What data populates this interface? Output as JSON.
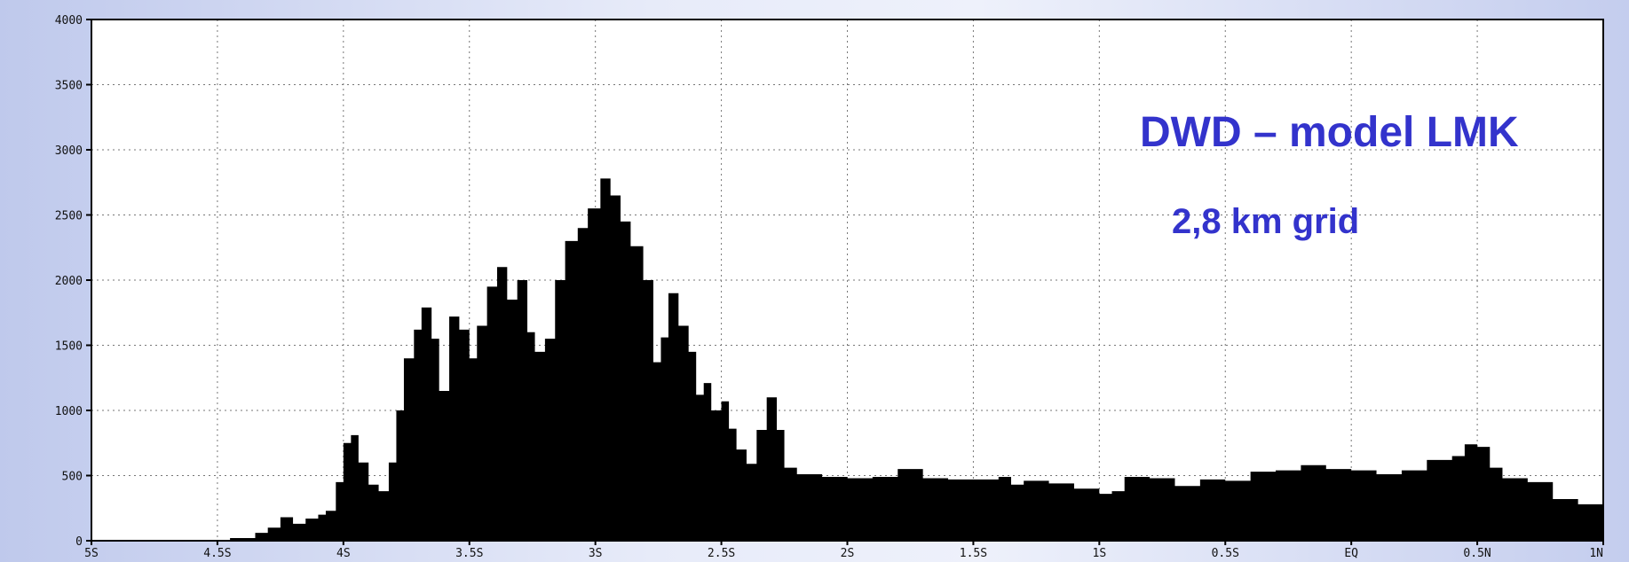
{
  "chart_data": {
    "type": "area",
    "annotations": [
      "DWD – model LMK",
      "2,8 km grid"
    ],
    "xlabel": "",
    "ylabel": "",
    "xlim": [
      -5,
      1
    ],
    "ylim": [
      0,
      4000
    ],
    "grid": true,
    "x_ticks": [
      {
        "value": -5,
        "label": "5S"
      },
      {
        "value": -4.5,
        "label": "4.5S"
      },
      {
        "value": -4,
        "label": "4S"
      },
      {
        "value": -3.5,
        "label": "3.5S"
      },
      {
        "value": -3,
        "label": "3S"
      },
      {
        "value": -2.5,
        "label": "2.5S"
      },
      {
        "value": -2,
        "label": "2S"
      },
      {
        "value": -1.5,
        "label": "1.5S"
      },
      {
        "value": -1,
        "label": "1S"
      },
      {
        "value": -0.5,
        "label": "0.5S"
      },
      {
        "value": 0,
        "label": "EQ"
      },
      {
        "value": 0.5,
        "label": "0.5N"
      },
      {
        "value": 1,
        "label": "1N"
      }
    ],
    "y_ticks": [
      {
        "value": 0,
        "label": "0"
      },
      {
        "value": 500,
        "label": "500"
      },
      {
        "value": 1000,
        "label": "1000"
      },
      {
        "value": 1500,
        "label": "1500"
      },
      {
        "value": 2000,
        "label": "2000"
      },
      {
        "value": 2500,
        "label": "2500"
      },
      {
        "value": 3000,
        "label": "3000"
      },
      {
        "value": 3500,
        "label": "3500"
      },
      {
        "value": 4000,
        "label": "4000"
      }
    ],
    "series": [
      {
        "fill": "#000000",
        "points": [
          [
            -5.0,
            0
          ],
          [
            -4.7,
            0
          ],
          [
            -4.55,
            5
          ],
          [
            -4.45,
            20
          ],
          [
            -4.35,
            60
          ],
          [
            -4.3,
            100
          ],
          [
            -4.25,
            180
          ],
          [
            -4.2,
            130
          ],
          [
            -4.15,
            170
          ],
          [
            -4.1,
            200
          ],
          [
            -4.07,
            230
          ],
          [
            -4.03,
            450
          ],
          [
            -4.0,
            750
          ],
          [
            -3.97,
            810
          ],
          [
            -3.94,
            600
          ],
          [
            -3.9,
            430
          ],
          [
            -3.86,
            380
          ],
          [
            -3.82,
            600
          ],
          [
            -3.79,
            1000
          ],
          [
            -3.76,
            1400
          ],
          [
            -3.72,
            1620
          ],
          [
            -3.69,
            1790
          ],
          [
            -3.65,
            1550
          ],
          [
            -3.62,
            1150
          ],
          [
            -3.58,
            1720
          ],
          [
            -3.54,
            1620
          ],
          [
            -3.5,
            1400
          ],
          [
            -3.47,
            1650
          ],
          [
            -3.43,
            1950
          ],
          [
            -3.39,
            2100
          ],
          [
            -3.35,
            1850
          ],
          [
            -3.31,
            2000
          ],
          [
            -3.27,
            1600
          ],
          [
            -3.24,
            1450
          ],
          [
            -3.2,
            1550
          ],
          [
            -3.16,
            2000
          ],
          [
            -3.12,
            2300
          ],
          [
            -3.07,
            2400
          ],
          [
            -3.03,
            2550
          ],
          [
            -2.98,
            2780
          ],
          [
            -2.94,
            2650
          ],
          [
            -2.9,
            2450
          ],
          [
            -2.86,
            2260
          ],
          [
            -2.81,
            2000
          ],
          [
            -2.77,
            1370
          ],
          [
            -2.74,
            1560
          ],
          [
            -2.71,
            1900
          ],
          [
            -2.67,
            1650
          ],
          [
            -2.63,
            1450
          ],
          [
            -2.6,
            1120
          ],
          [
            -2.57,
            1210
          ],
          [
            -2.54,
            1000
          ],
          [
            -2.5,
            1070
          ],
          [
            -2.47,
            860
          ],
          [
            -2.44,
            700
          ],
          [
            -2.4,
            590
          ],
          [
            -2.36,
            850
          ],
          [
            -2.32,
            1100
          ],
          [
            -2.28,
            850
          ],
          [
            -2.25,
            560
          ],
          [
            -2.2,
            510
          ],
          [
            -2.1,
            490
          ],
          [
            -2.0,
            480
          ],
          [
            -1.9,
            490
          ],
          [
            -1.8,
            550
          ],
          [
            -1.7,
            480
          ],
          [
            -1.6,
            470
          ],
          [
            -1.5,
            470
          ],
          [
            -1.4,
            490
          ],
          [
            -1.35,
            430
          ],
          [
            -1.3,
            460
          ],
          [
            -1.2,
            440
          ],
          [
            -1.1,
            400
          ],
          [
            -1.0,
            360
          ],
          [
            -0.95,
            380
          ],
          [
            -0.9,
            490
          ],
          [
            -0.8,
            480
          ],
          [
            -0.7,
            420
          ],
          [
            -0.6,
            470
          ],
          [
            -0.5,
            460
          ],
          [
            -0.4,
            530
          ],
          [
            -0.3,
            540
          ],
          [
            -0.2,
            580
          ],
          [
            -0.1,
            550
          ],
          [
            0.0,
            540
          ],
          [
            0.1,
            510
          ],
          [
            0.2,
            540
          ],
          [
            0.3,
            620
          ],
          [
            0.4,
            650
          ],
          [
            0.45,
            740
          ],
          [
            0.5,
            720
          ],
          [
            0.55,
            560
          ],
          [
            0.6,
            480
          ],
          [
            0.7,
            450
          ],
          [
            0.8,
            320
          ],
          [
            0.9,
            280
          ],
          [
            1.0,
            230
          ]
        ]
      }
    ]
  }
}
